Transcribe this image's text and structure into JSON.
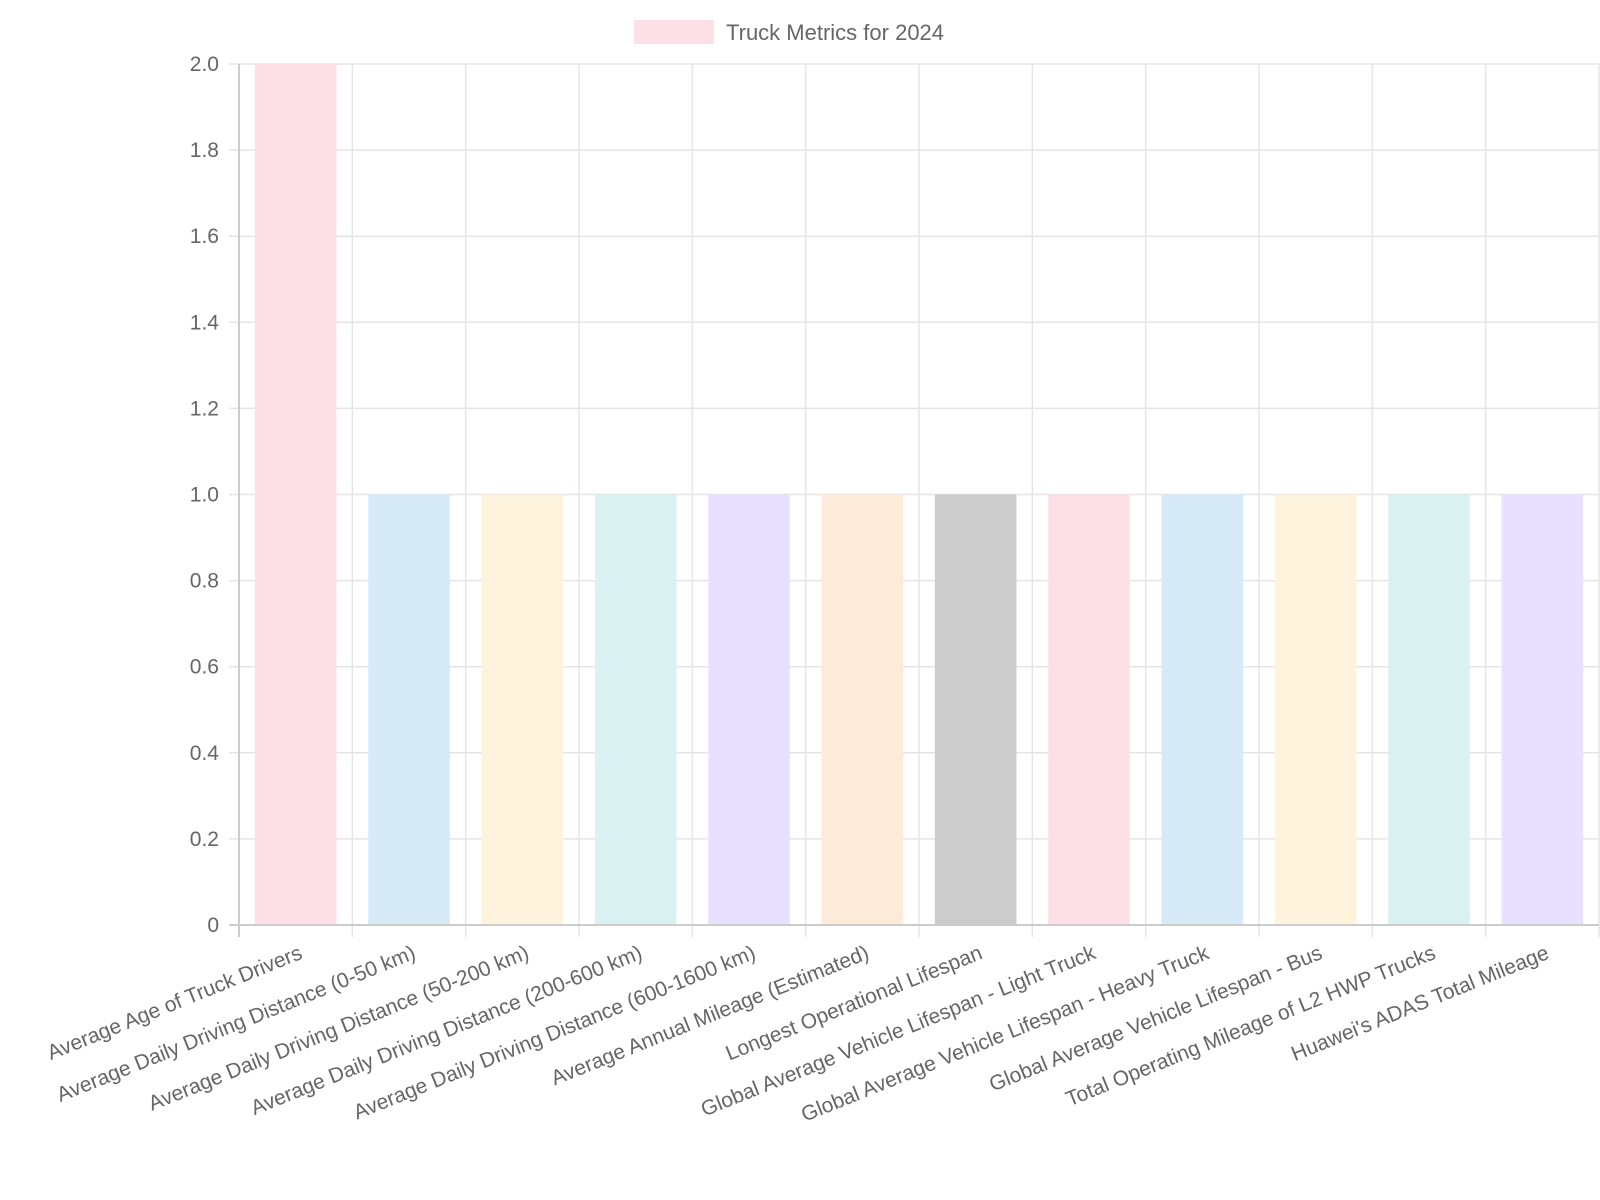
{
  "chart_data": {
    "type": "bar",
    "legend": {
      "label": "Truck Metrics for 2024",
      "swatch_color": "#fde0e6",
      "position": "top-center"
    },
    "categories": [
      "Average Age of Truck Drivers",
      "Average Daily Driving Distance (0-50 km)",
      "Average Daily Driving Distance (50-200 km)",
      "Average Daily Driving Distance (200-600 km)",
      "Average Daily Driving Distance (600-1600 km)",
      "Average Annual Mileage (Estimated)",
      "Longest Operational Lifespan",
      "Global Average Vehicle Lifespan - Light Truck",
      "Global Average Vehicle Lifespan - Heavy Truck",
      "Global Average Vehicle Lifespan - Bus",
      "Total Operating Mileage of L2 HWP Trucks",
      "Huawei's ADAS Total Mileage"
    ],
    "series": [
      {
        "name": "Truck Metrics for 2024",
        "values": [
          2,
          1,
          1,
          1,
          1,
          1,
          1,
          1,
          1,
          1,
          1,
          1
        ]
      }
    ],
    "bar_colors": [
      "#fde0e6",
      "#d6eaf8",
      "#fef3dc",
      "#d9f1f1",
      "#e8e0fe",
      "#feead9",
      "#cccccc",
      "#fde0e6",
      "#d6eaf8",
      "#fef3dc",
      "#d9f1f1",
      "#e8e0fe"
    ],
    "y_ticks": [
      "0",
      "0.2",
      "0.4",
      "0.6",
      "0.8",
      "1.0",
      "1.2",
      "1.4",
      "1.6",
      "1.8",
      "2.0"
    ],
    "ylim": [
      0,
      2
    ],
    "grid": true,
    "grid_color": "#e5e5e5"
  }
}
